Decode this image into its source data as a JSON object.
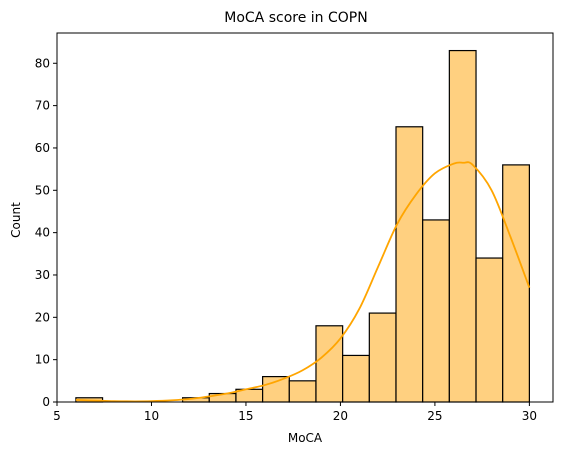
{
  "chart_data": {
    "type": "histogram",
    "title": "MoCA score in COPN",
    "xlabel": "MoCA",
    "ylabel": "Count",
    "xlim": [
      5,
      31.25
    ],
    "ylim": [
      0,
      87.15
    ],
    "xticks": [
      5,
      10,
      15,
      20,
      25,
      30
    ],
    "yticks": [
      0,
      10,
      20,
      30,
      40,
      50,
      60,
      70,
      80
    ],
    "bin_edges": [
      6.0,
      7.4118,
      8.8235,
      10.2353,
      11.6471,
      13.0588,
      14.4706,
      15.8824,
      17.2941,
      18.7059,
      20.1176,
      21.5294,
      22.9412,
      24.3529,
      25.7647,
      27.1765,
      28.5882,
      30.0
    ],
    "counts": [
      1,
      0,
      0,
      0,
      1,
      2,
      3,
      6,
      5,
      18,
      11,
      21,
      65,
      43,
      83,
      34,
      56
    ],
    "kde": {
      "x": [
        6,
        8,
        10,
        12,
        14,
        15,
        16,
        17,
        18,
        19,
        20,
        21,
        22,
        23,
        24,
        25,
        26,
        26.5,
        27,
        28,
        29,
        30
      ],
      "y": [
        0.5,
        0.2,
        0.2,
        0.7,
        2.0,
        3.0,
        4.0,
        5.5,
        7.5,
        10.5,
        15.0,
        22.0,
        32.0,
        42.0,
        49.0,
        54.0,
        56.3,
        56.5,
        56.0,
        50.0,
        39.0,
        27.0
      ]
    },
    "colors": {
      "bar_fill": "#ffd080",
      "bar_edge": "#000000",
      "kde_line": "#ffa500"
    }
  }
}
